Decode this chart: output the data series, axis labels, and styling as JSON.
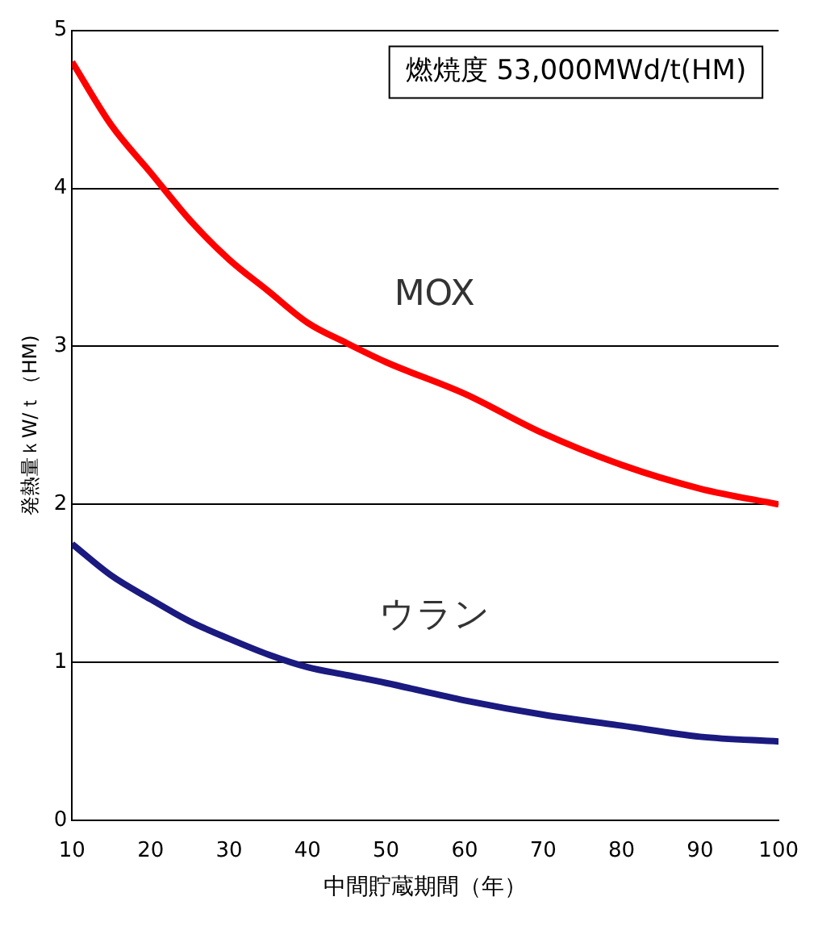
{
  "chart_data": {
    "type": "line",
    "xlabel": "中間貯蔵期間（年）",
    "ylabel": "発熱量ｋW/ｔ（HM)",
    "annotations": [
      "燃焼度 53,000MWd/t(HM)"
    ],
    "x": [
      10,
      15,
      20,
      25,
      30,
      35,
      40,
      45,
      50,
      60,
      70,
      80,
      90,
      100
    ],
    "series": [
      {
        "name": "MOX",
        "color": "#ff0000",
        "values": [
          4.8,
          4.4,
          4.1,
          3.8,
          3.55,
          3.35,
          3.15,
          3.02,
          2.9,
          2.7,
          2.45,
          2.25,
          2.1,
          2.0
        ]
      },
      {
        "name": "ウラン",
        "color": "#1a1a80",
        "values": [
          1.75,
          1.55,
          1.4,
          1.26,
          1.15,
          1.05,
          0.97,
          0.92,
          0.87,
          0.76,
          0.67,
          0.6,
          0.53,
          0.5
        ]
      }
    ],
    "xlim": [
      10,
      100
    ],
    "xticks": [
      10,
      20,
      30,
      40,
      50,
      60,
      70,
      80,
      90,
      100
    ],
    "ylim": [
      0,
      5
    ],
    "yticks": [
      0,
      1,
      2,
      3,
      4,
      5
    ],
    "grid": "y",
    "legend": false,
    "marker": "none",
    "line_style": "solid"
  }
}
